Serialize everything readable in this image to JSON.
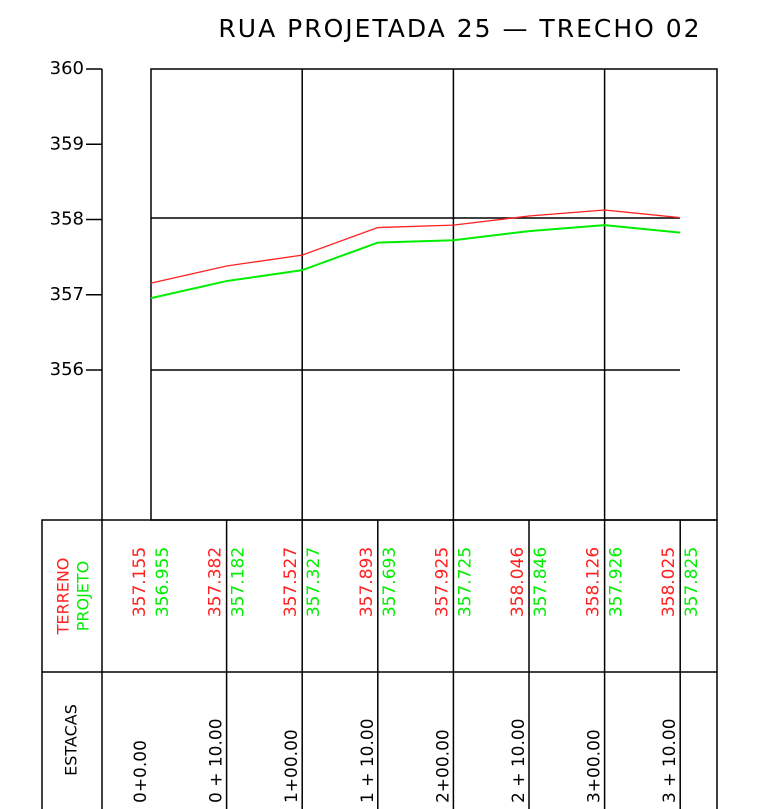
{
  "chart_data": {
    "type": "line",
    "title": "RUA PROJETADA 25 — TRECHO 02",
    "x_label": "ESTACAS",
    "categories": [
      "0+0.00",
      "0 + 10.00",
      "1+00.00",
      "1 + 10.00",
      "2+00.00",
      "2 + 10.00",
      "3+00.00",
      "3 + 10.00"
    ],
    "series": [
      {
        "name": "TERRENO",
        "color": "#ff2020",
        "values": [
          357.155,
          357.382,
          357.527,
          357.893,
          357.925,
          358.046,
          358.126,
          358.025
        ]
      },
      {
        "name": "PROJETO",
        "color": "#00ee00",
        "values": [
          356.955,
          357.182,
          357.327,
          357.693,
          357.725,
          357.846,
          357.926,
          357.825
        ]
      }
    ],
    "ylim": [
      356,
      360
    ],
    "yticks": [
      356,
      357,
      358,
      359,
      360
    ]
  }
}
